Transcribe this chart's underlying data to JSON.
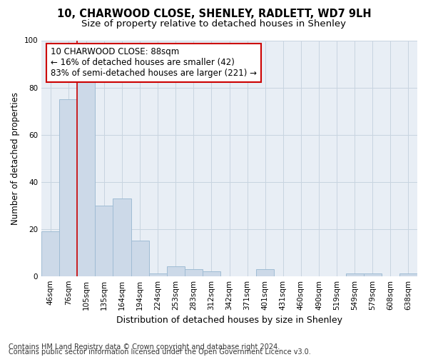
{
  "title1": "10, CHARWOOD CLOSE, SHENLEY, RADLETT, WD7 9LH",
  "title2": "Size of property relative to detached houses in Shenley",
  "xlabel": "Distribution of detached houses by size in Shenley",
  "ylabel": "Number of detached properties",
  "categories": [
    "46sqm",
    "76sqm",
    "105sqm",
    "135sqm",
    "164sqm",
    "194sqm",
    "224sqm",
    "253sqm",
    "283sqm",
    "312sqm",
    "342sqm",
    "371sqm",
    "401sqm",
    "431sqm",
    "460sqm",
    "490sqm",
    "519sqm",
    "549sqm",
    "579sqm",
    "608sqm",
    "638sqm"
  ],
  "values": [
    19,
    75,
    85,
    30,
    33,
    15,
    1,
    4,
    3,
    2,
    0,
    0,
    3,
    0,
    0,
    0,
    0,
    1,
    1,
    0,
    1
  ],
  "bar_color": "#ccd9e8",
  "bar_edge_color": "#a0bcd4",
  "vline_x": 1.5,
  "vline_color": "#cc0000",
  "ann_line1": "10 CHARWOOD CLOSE: 88sqm",
  "ann_line2": "← 16% of detached houses are smaller (42)",
  "ann_line3": "83% of semi-detached houses are larger (221) →",
  "annotation_box_color": "#ffffff",
  "annotation_box_edge_color": "#cc0000",
  "ylim": [
    0,
    100
  ],
  "yticks": [
    0,
    20,
    40,
    60,
    80,
    100
  ],
  "grid_color": "#c8d4e0",
  "bg_color": "#e8eef5",
  "footer1": "Contains HM Land Registry data © Crown copyright and database right 2024.",
  "footer2": "Contains public sector information licensed under the Open Government Licence v3.0.",
  "title1_fontsize": 10.5,
  "title2_fontsize": 9.5,
  "xlabel_fontsize": 9,
  "ylabel_fontsize": 8.5,
  "tick_fontsize": 7.5,
  "ann_fontsize": 8.5,
  "footer_fontsize": 7
}
